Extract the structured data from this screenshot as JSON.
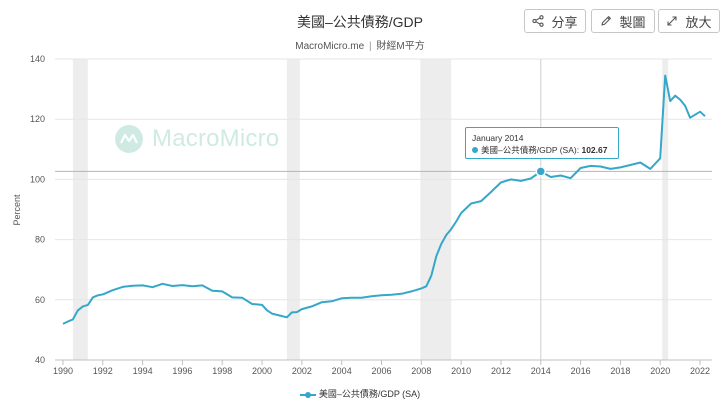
{
  "header": {
    "title": "美國–公共債務/GDP",
    "source": "MacroMicro.me",
    "source_separator": "|",
    "source_cn": "財經M平方"
  },
  "toolbar": {
    "share_label": "分享",
    "draw_label": "製圖",
    "zoom_label": "放大"
  },
  "watermark": {
    "text": "MacroMicro"
  },
  "tooltip": {
    "date": "January 2014",
    "series": "美國–公共債務/GDP (SA):",
    "value": "102.67"
  },
  "legend": {
    "label": "美國–公共債務/GDP (SA)"
  },
  "colors": {
    "series": "#35a7c9",
    "recession": "#ededed",
    "grid": "#e6e6e6",
    "axis": "#c0c0c0"
  },
  "chart_data": {
    "type": "line",
    "ylabel": "Percent",
    "xlim": [
      1989.6,
      2022.6
    ],
    "ylim": [
      40,
      140
    ],
    "y_ticks": [
      40,
      60,
      80,
      100,
      120,
      140
    ],
    "x_ticks": [
      1990,
      1992,
      1994,
      1996,
      1998,
      2000,
      2002,
      2004,
      2006,
      2008,
      2010,
      2012,
      2014,
      2016,
      2018,
      2020,
      2022
    ],
    "grid": "horizontal",
    "recessions": [
      [
        1990.5,
        1991.25
      ],
      [
        2001.25,
        2001.9
      ],
      [
        2007.95,
        2009.5
      ],
      [
        2020.1,
        2020.4
      ]
    ],
    "reference_line": {
      "y": 102.67
    },
    "crosshair": {
      "x": 2014.0,
      "y": 102.67
    },
    "series": [
      {
        "name": "美國–公共債務/GDP (SA)",
        "x": [
          1990,
          1990.25,
          1990.5,
          1990.75,
          1991,
          1991.25,
          1991.5,
          1991.75,
          1992,
          1992.5,
          1993,
          1993.5,
          1994,
          1994.5,
          1995,
          1995.5,
          1996,
          1996.5,
          1997,
          1997.5,
          1998,
          1998.5,
          1999,
          1999.5,
          2000,
          2000.25,
          2000.5,
          2000.75,
          2001,
          2001.25,
          2001.5,
          2001.75,
          2002,
          2002.5,
          2003,
          2003.5,
          2004,
          2004.5,
          2005,
          2005.5,
          2006,
          2006.5,
          2007,
          2007.5,
          2008,
          2008.25,
          2008.5,
          2008.75,
          2009,
          2009.25,
          2009.5,
          2009.75,
          2010,
          2010.5,
          2011,
          2011.5,
          2012,
          2012.5,
          2013,
          2013.5,
          2014,
          2014.5,
          2015,
          2015.5,
          2016,
          2016.5,
          2017,
          2017.5,
          2018,
          2018.5,
          2019,
          2019.5,
          2020,
          2020.25,
          2020.5,
          2020.75,
          2021,
          2021.25,
          2021.5,
          2021.75,
          2022,
          2022.25
        ],
        "values": [
          52,
          52.8,
          53.5,
          56.5,
          57.8,
          58.3,
          60.8,
          61.5,
          61.8,
          63.2,
          64.3,
          64.7,
          64.8,
          64.2,
          65.3,
          64.6,
          64.9,
          64.5,
          64.8,
          63,
          62.8,
          60.8,
          60.7,
          58.6,
          58.3,
          56.5,
          55.4,
          55,
          54.6,
          54.2,
          55.8,
          55.9,
          56.9,
          57.8,
          59.2,
          59.5,
          60.5,
          60.7,
          60.7,
          61.2,
          61.5,
          61.7,
          62,
          62.8,
          63.8,
          64.5,
          68,
          74.5,
          78.5,
          81.5,
          83.5,
          86,
          88.8,
          92,
          92.8,
          95.8,
          99,
          100,
          99.5,
          100.3,
          102.67,
          100.8,
          101.3,
          100.4,
          103.8,
          104.5,
          104.3,
          103.5,
          104,
          104.8,
          105.6,
          103.5,
          107,
          134.5,
          126,
          127.8,
          126.5,
          124.5,
          120.5,
          121.5,
          122.5,
          121
        ]
      }
    ]
  }
}
